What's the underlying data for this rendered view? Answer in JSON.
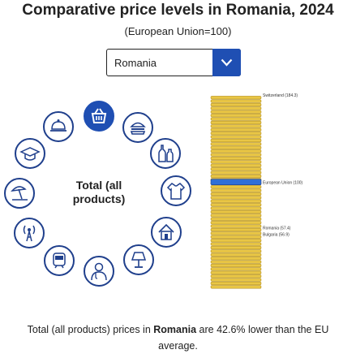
{
  "header": {
    "title": "Comparative price levels in Romania, 2024",
    "subtitle": "(European Union=100)"
  },
  "country_select": {
    "value": "Romania",
    "button_icon": "chevron-down-icon"
  },
  "categories": {
    "selected_label": "Total (all products)",
    "icons": [
      {
        "name": "basket-icon",
        "active": true
      },
      {
        "name": "burger-icon",
        "active": false
      },
      {
        "name": "bottles-icon",
        "active": false
      },
      {
        "name": "clothing-icon",
        "active": false
      },
      {
        "name": "house-icon",
        "active": false
      },
      {
        "name": "lamp-icon",
        "active": false
      },
      {
        "name": "doctor-icon",
        "active": false
      },
      {
        "name": "train-icon",
        "active": false
      },
      {
        "name": "antenna-icon",
        "active": false
      },
      {
        "name": "beach-icon",
        "active": false
      },
      {
        "name": "graduation-cap-icon",
        "active": false
      },
      {
        "name": "restaurant-cloche-icon",
        "active": false
      }
    ]
  },
  "chart_data": {
    "type": "bar",
    "title": "",
    "highlight_color": "#2f6fd8",
    "coin_color": "#e9c645",
    "labels": [
      {
        "name": "Switzerland",
        "text": "Switzerland (184.3)",
        "value": 184.3
      },
      {
        "name": "European Union",
        "text": "European Union (100)",
        "value": 100
      },
      {
        "name": "Romania",
        "text": "Romania (57.4)",
        "value": 57.4
      },
      {
        "name": "Bulgaria",
        "text": "Bulgaria (56.9)",
        "value": 56.9
      }
    ]
  },
  "footer": {
    "prefix": "Total (all products) prices in ",
    "country": "Romania",
    "suffix": " are 42.6% lower than the EU average."
  }
}
